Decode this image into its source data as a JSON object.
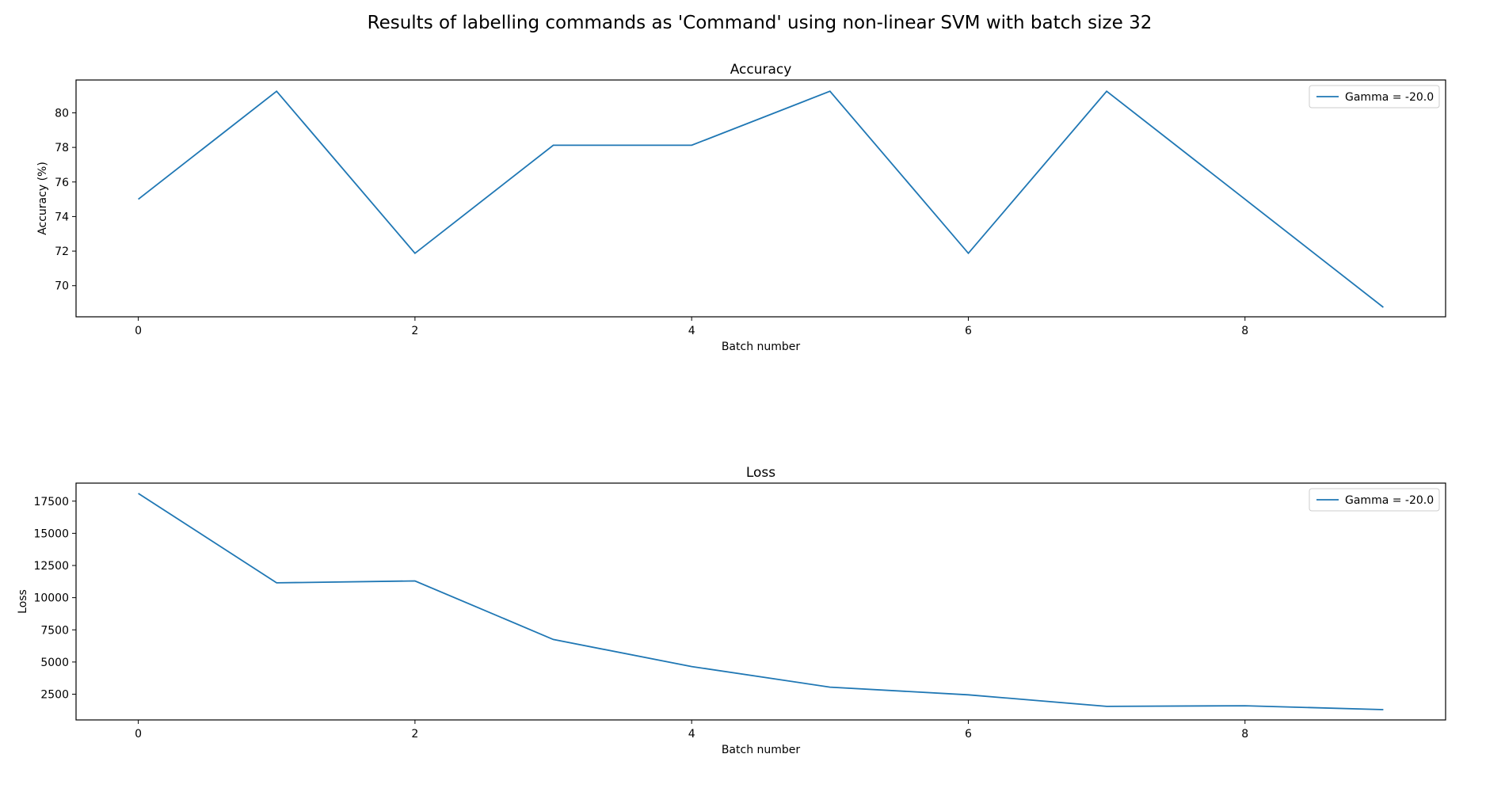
{
  "figure": {
    "title": "Results of labelling commands as 'Command' using non-linear SVM with batch size 32"
  },
  "colors": {
    "series": "#1f77b4",
    "frame": "#000000",
    "legend_border": "#cccccc",
    "background": "#ffffff"
  },
  "chart_data": [
    {
      "type": "line",
      "title": "Accuracy",
      "xlabel": "Batch number",
      "ylabel": "Accuracy (%)",
      "x": [
        0,
        1,
        2,
        3,
        4,
        5,
        6,
        7,
        8,
        9
      ],
      "series": [
        {
          "name": "Gamma = -20.0",
          "values": [
            75.0,
            81.25,
            71.875,
            78.125,
            78.125,
            81.25,
            71.875,
            81.25,
            75.0,
            68.75
          ]
        }
      ],
      "xlim": [
        -0.45,
        9.45
      ],
      "ylim": [
        68.2,
        81.9
      ],
      "xticks": [
        0,
        2,
        4,
        6,
        8
      ],
      "yticks": [
        70,
        72,
        74,
        76,
        78,
        80
      ],
      "grid": false,
      "legend_position": "top-right"
    },
    {
      "type": "line",
      "title": "Loss",
      "xlabel": "Batch number",
      "ylabel": "Loss",
      "x": [
        0,
        1,
        2,
        3,
        4,
        5,
        6,
        7,
        8,
        9
      ],
      "series": [
        {
          "name": "Gamma = -20.0",
          "values": [
            18100,
            11150,
            11300,
            6750,
            4650,
            3050,
            2450,
            1550,
            1600,
            1300
          ]
        }
      ],
      "xlim": [
        -0.45,
        9.45
      ],
      "ylim": [
        500,
        18900
      ],
      "xticks": [
        0,
        2,
        4,
        6,
        8
      ],
      "yticks": [
        2500,
        5000,
        7500,
        10000,
        12500,
        15000,
        17500
      ],
      "grid": false,
      "legend_position": "top-right"
    }
  ]
}
